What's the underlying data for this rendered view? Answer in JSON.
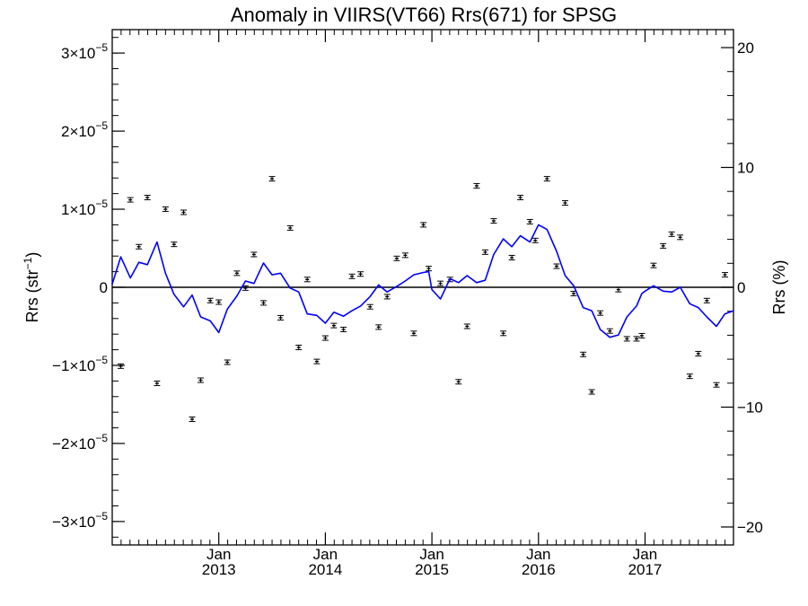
{
  "chart_data": {
    "type": "line",
    "title": "Anomaly in VIIRS(VT66) Rrs(671) for SPSG",
    "ylabel_left": "Rrs (str",
    "ylabel_left_sup": "−1",
    "ylabel_left_close": ")",
    "ylabel_right": "Rrs (%)",
    "xlim": [
      2012.0,
      2017.83
    ],
    "ylim_left": [
      -3.3e-05,
      3.3e-05
    ],
    "ylim_right": [
      -21.5,
      21.5
    ],
    "x_ticks": [
      {
        "x": 2013.0,
        "month": "Jan",
        "year": "2013"
      },
      {
        "x": 2014.0,
        "month": "Jan",
        "year": "2014"
      },
      {
        "x": 2015.0,
        "month": "Jan",
        "year": "2015"
      },
      {
        "x": 2016.0,
        "month": "Jan",
        "year": "2016"
      },
      {
        "x": 2017.0,
        "month": "Jan",
        "year": "2017"
      }
    ],
    "y_ticks_left": [
      {
        "v": 3e-05,
        "mant": "3",
        "exp": "−5"
      },
      {
        "v": 2e-05,
        "mant": "2",
        "exp": "−5"
      },
      {
        "v": 1e-05,
        "mant": "1",
        "exp": "−5"
      },
      {
        "v": 0,
        "label": "0"
      },
      {
        "v": -1e-05,
        "mant": "−1",
        "exp": "−5"
      },
      {
        "v": -2e-05,
        "mant": "−2",
        "exp": "−5"
      },
      {
        "v": -3e-05,
        "mant": "−3",
        "exp": "−5"
      }
    ],
    "times_sign": "×10",
    "y_ticks_right": [
      {
        "v": 20,
        "label": "20"
      },
      {
        "v": 10,
        "label": "10"
      },
      {
        "v": 0,
        "label": "0"
      },
      {
        "v": -10,
        "label": "−10"
      },
      {
        "v": -20,
        "label": "−20"
      }
    ],
    "grid": false,
    "zero_line": true,
    "series": [
      {
        "kind": "line",
        "color": "#0000ff",
        "points": [
          [
            2012.0,
            4e-07
          ],
          [
            2012.08,
            3.9e-06
          ],
          [
            2012.17,
            1.2e-06
          ],
          [
            2012.25,
            3.2e-06
          ],
          [
            2012.33,
            2.9e-06
          ],
          [
            2012.42,
            5.8e-06
          ],
          [
            2012.5,
            1.8e-06
          ],
          [
            2012.58,
            -9e-07
          ],
          [
            2012.67,
            -2.5e-06
          ],
          [
            2012.75,
            -1e-06
          ],
          [
            2012.83,
            -3.8e-06
          ],
          [
            2012.92,
            -4.3e-06
          ],
          [
            2013.0,
            -5.8e-06
          ],
          [
            2013.08,
            -2.8e-06
          ],
          [
            2013.17,
            -1.1e-06
          ],
          [
            2013.25,
            8e-07
          ],
          [
            2013.33,
            5e-07
          ],
          [
            2013.42,
            3.1e-06
          ],
          [
            2013.5,
            1.6e-06
          ],
          [
            2013.58,
            1.8e-06
          ],
          [
            2013.67,
            -1e-07
          ],
          [
            2013.75,
            -6e-07
          ],
          [
            2013.83,
            -3.4e-06
          ],
          [
            2013.92,
            -3.6e-06
          ],
          [
            2014.0,
            -4.6e-06
          ],
          [
            2014.08,
            -3.2e-06
          ],
          [
            2014.17,
            -3.7e-06
          ],
          [
            2014.25,
            -3e-06
          ],
          [
            2014.33,
            -2.4e-06
          ],
          [
            2014.42,
            -1.2e-06
          ],
          [
            2014.5,
            3e-07
          ],
          [
            2014.58,
            -6e-07
          ],
          [
            2014.67,
            1e-07
          ],
          [
            2014.75,
            8e-07
          ],
          [
            2014.83,
            1.6e-06
          ],
          [
            2014.92,
            1.9e-06
          ],
          [
            2014.97,
            2e-06
          ],
          [
            2015.0,
            -3e-07
          ],
          [
            2015.08,
            -1.5e-06
          ],
          [
            2015.17,
            1.1e-06
          ],
          [
            2015.25,
            6e-07
          ],
          [
            2015.33,
            1.5e-06
          ],
          [
            2015.42,
            6e-07
          ],
          [
            2015.5,
            9e-07
          ],
          [
            2015.58,
            4.2e-06
          ],
          [
            2015.67,
            6.2e-06
          ],
          [
            2015.75,
            5.2e-06
          ],
          [
            2015.83,
            6.6e-06
          ],
          [
            2015.92,
            5.8e-06
          ],
          [
            2016.0,
            8e-06
          ],
          [
            2016.08,
            7.4e-06
          ],
          [
            2016.17,
            4.6e-06
          ],
          [
            2016.25,
            1.5e-06
          ],
          [
            2016.33,
            2e-07
          ],
          [
            2016.42,
            -2.6e-06
          ],
          [
            2016.5,
            -3e-06
          ],
          [
            2016.58,
            -5.4e-06
          ],
          [
            2016.67,
            -6.4e-06
          ],
          [
            2016.75,
            -6.1e-06
          ],
          [
            2016.83,
            -3.8e-06
          ],
          [
            2016.92,
            -2.4e-06
          ],
          [
            2016.97,
            -8e-07
          ],
          [
            2017.0,
            -5e-07
          ],
          [
            2017.08,
            2e-07
          ],
          [
            2017.17,
            -5e-07
          ],
          [
            2017.25,
            -6e-07
          ],
          [
            2017.33,
            0.0
          ],
          [
            2017.42,
            -2.1e-06
          ],
          [
            2017.5,
            -2.6e-06
          ],
          [
            2017.58,
            -3.8e-06
          ],
          [
            2017.67,
            -5e-06
          ],
          [
            2017.75,
            -3.4e-06
          ],
          [
            2017.83,
            -3e-06
          ]
        ]
      },
      {
        "kind": "errorbar",
        "color": "#000000",
        "points": [
          [
            2012.08,
            -1.01e-05
          ],
          [
            2012.17,
            1.12e-05
          ],
          [
            2012.25,
            5.2e-06
          ],
          [
            2012.33,
            1.15e-05
          ],
          [
            2012.42,
            -1.23e-05
          ],
          [
            2012.5,
            1e-05
          ],
          [
            2012.58,
            5.5e-06
          ],
          [
            2012.67,
            9.6e-06
          ],
          [
            2012.75,
            -1.69e-05
          ],
          [
            2012.83,
            -1.19e-05
          ],
          [
            2012.92,
            -1.7e-06
          ],
          [
            2013.0,
            -1.9e-06
          ],
          [
            2013.08,
            -9.6e-06
          ],
          [
            2013.17,
            1.8e-06
          ],
          [
            2013.25,
            -1e-07
          ],
          [
            2013.33,
            4.2e-06
          ],
          [
            2013.42,
            -2e-06
          ],
          [
            2013.5,
            1.39e-05
          ],
          [
            2013.58,
            -3.9e-06
          ],
          [
            2013.67,
            7.6e-06
          ],
          [
            2013.75,
            -7.7e-06
          ],
          [
            2013.83,
            1e-06
          ],
          [
            2013.92,
            -9.5e-06
          ],
          [
            2014.0,
            -6.5e-06
          ],
          [
            2014.08,
            -4.9e-06
          ],
          [
            2014.17,
            -5.4e-06
          ],
          [
            2014.25,
            1.4e-06
          ],
          [
            2014.33,
            1.7e-06
          ],
          [
            2014.42,
            -2.5e-06
          ],
          [
            2014.5,
            -5.1e-06
          ],
          [
            2014.58,
            -1.2e-06
          ],
          [
            2014.67,
            3.7e-06
          ],
          [
            2014.75,
            4.1e-06
          ],
          [
            2014.83,
            -5.9e-06
          ],
          [
            2014.92,
            8e-06
          ],
          [
            2014.97,
            2.4e-06
          ],
          [
            2015.08,
            5e-07
          ],
          [
            2015.17,
            1e-06
          ],
          [
            2015.25,
            -1.21e-05
          ],
          [
            2015.33,
            -5e-06
          ],
          [
            2015.42,
            1.3e-05
          ],
          [
            2015.5,
            4.5e-06
          ],
          [
            2015.58,
            8.5e-06
          ],
          [
            2015.67,
            -5.9e-06
          ],
          [
            2015.75,
            3.8e-06
          ],
          [
            2015.83,
            1.15e-05
          ],
          [
            2015.92,
            8.4e-06
          ],
          [
            2015.97,
            6e-06
          ],
          [
            2016.08,
            1.39e-05
          ],
          [
            2016.17,
            2.7e-06
          ],
          [
            2016.25,
            1.08e-05
          ],
          [
            2016.33,
            -8e-07
          ],
          [
            2016.42,
            -8.6e-06
          ],
          [
            2016.5,
            -1.34e-05
          ],
          [
            2016.58,
            -3.3e-06
          ],
          [
            2016.67,
            -5.6e-06
          ],
          [
            2016.75,
            -3e-07
          ],
          [
            2016.83,
            -6.6e-06
          ],
          [
            2016.92,
            -6.6e-06
          ],
          [
            2016.97,
            -6.2e-06
          ],
          [
            2017.08,
            2.8e-06
          ],
          [
            2017.17,
            5.3e-06
          ],
          [
            2017.25,
            6.8e-06
          ],
          [
            2017.33,
            6.4e-06
          ],
          [
            2017.42,
            -1.14e-05
          ],
          [
            2017.5,
            -8.5e-06
          ],
          [
            2017.58,
            -1.7e-06
          ],
          [
            2017.67,
            -1.25e-05
          ],
          [
            2017.75,
            1.6e-06
          ]
        ]
      }
    ]
  }
}
